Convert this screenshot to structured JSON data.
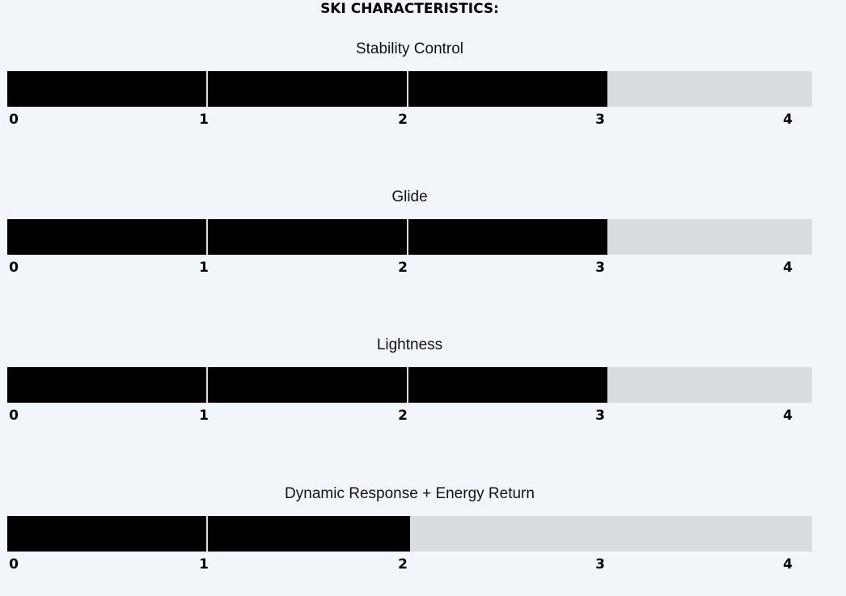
{
  "heading": "SKI CHARACTERISTICS:",
  "chart_data": {
    "type": "bar",
    "orientation": "horizontal",
    "scale_min": 0,
    "scale_max": 4,
    "tick_labels": [
      "0",
      "1",
      "2",
      "3",
      "4"
    ],
    "categories": [
      "Stability Control",
      "Glide",
      "Lightness",
      "Dynamic Response + Energy Return"
    ],
    "values": [
      3,
      3,
      3,
      2
    ],
    "colors": {
      "fill": "#000000",
      "track": "#d9dde2",
      "background": "#f2f5fa"
    }
  }
}
